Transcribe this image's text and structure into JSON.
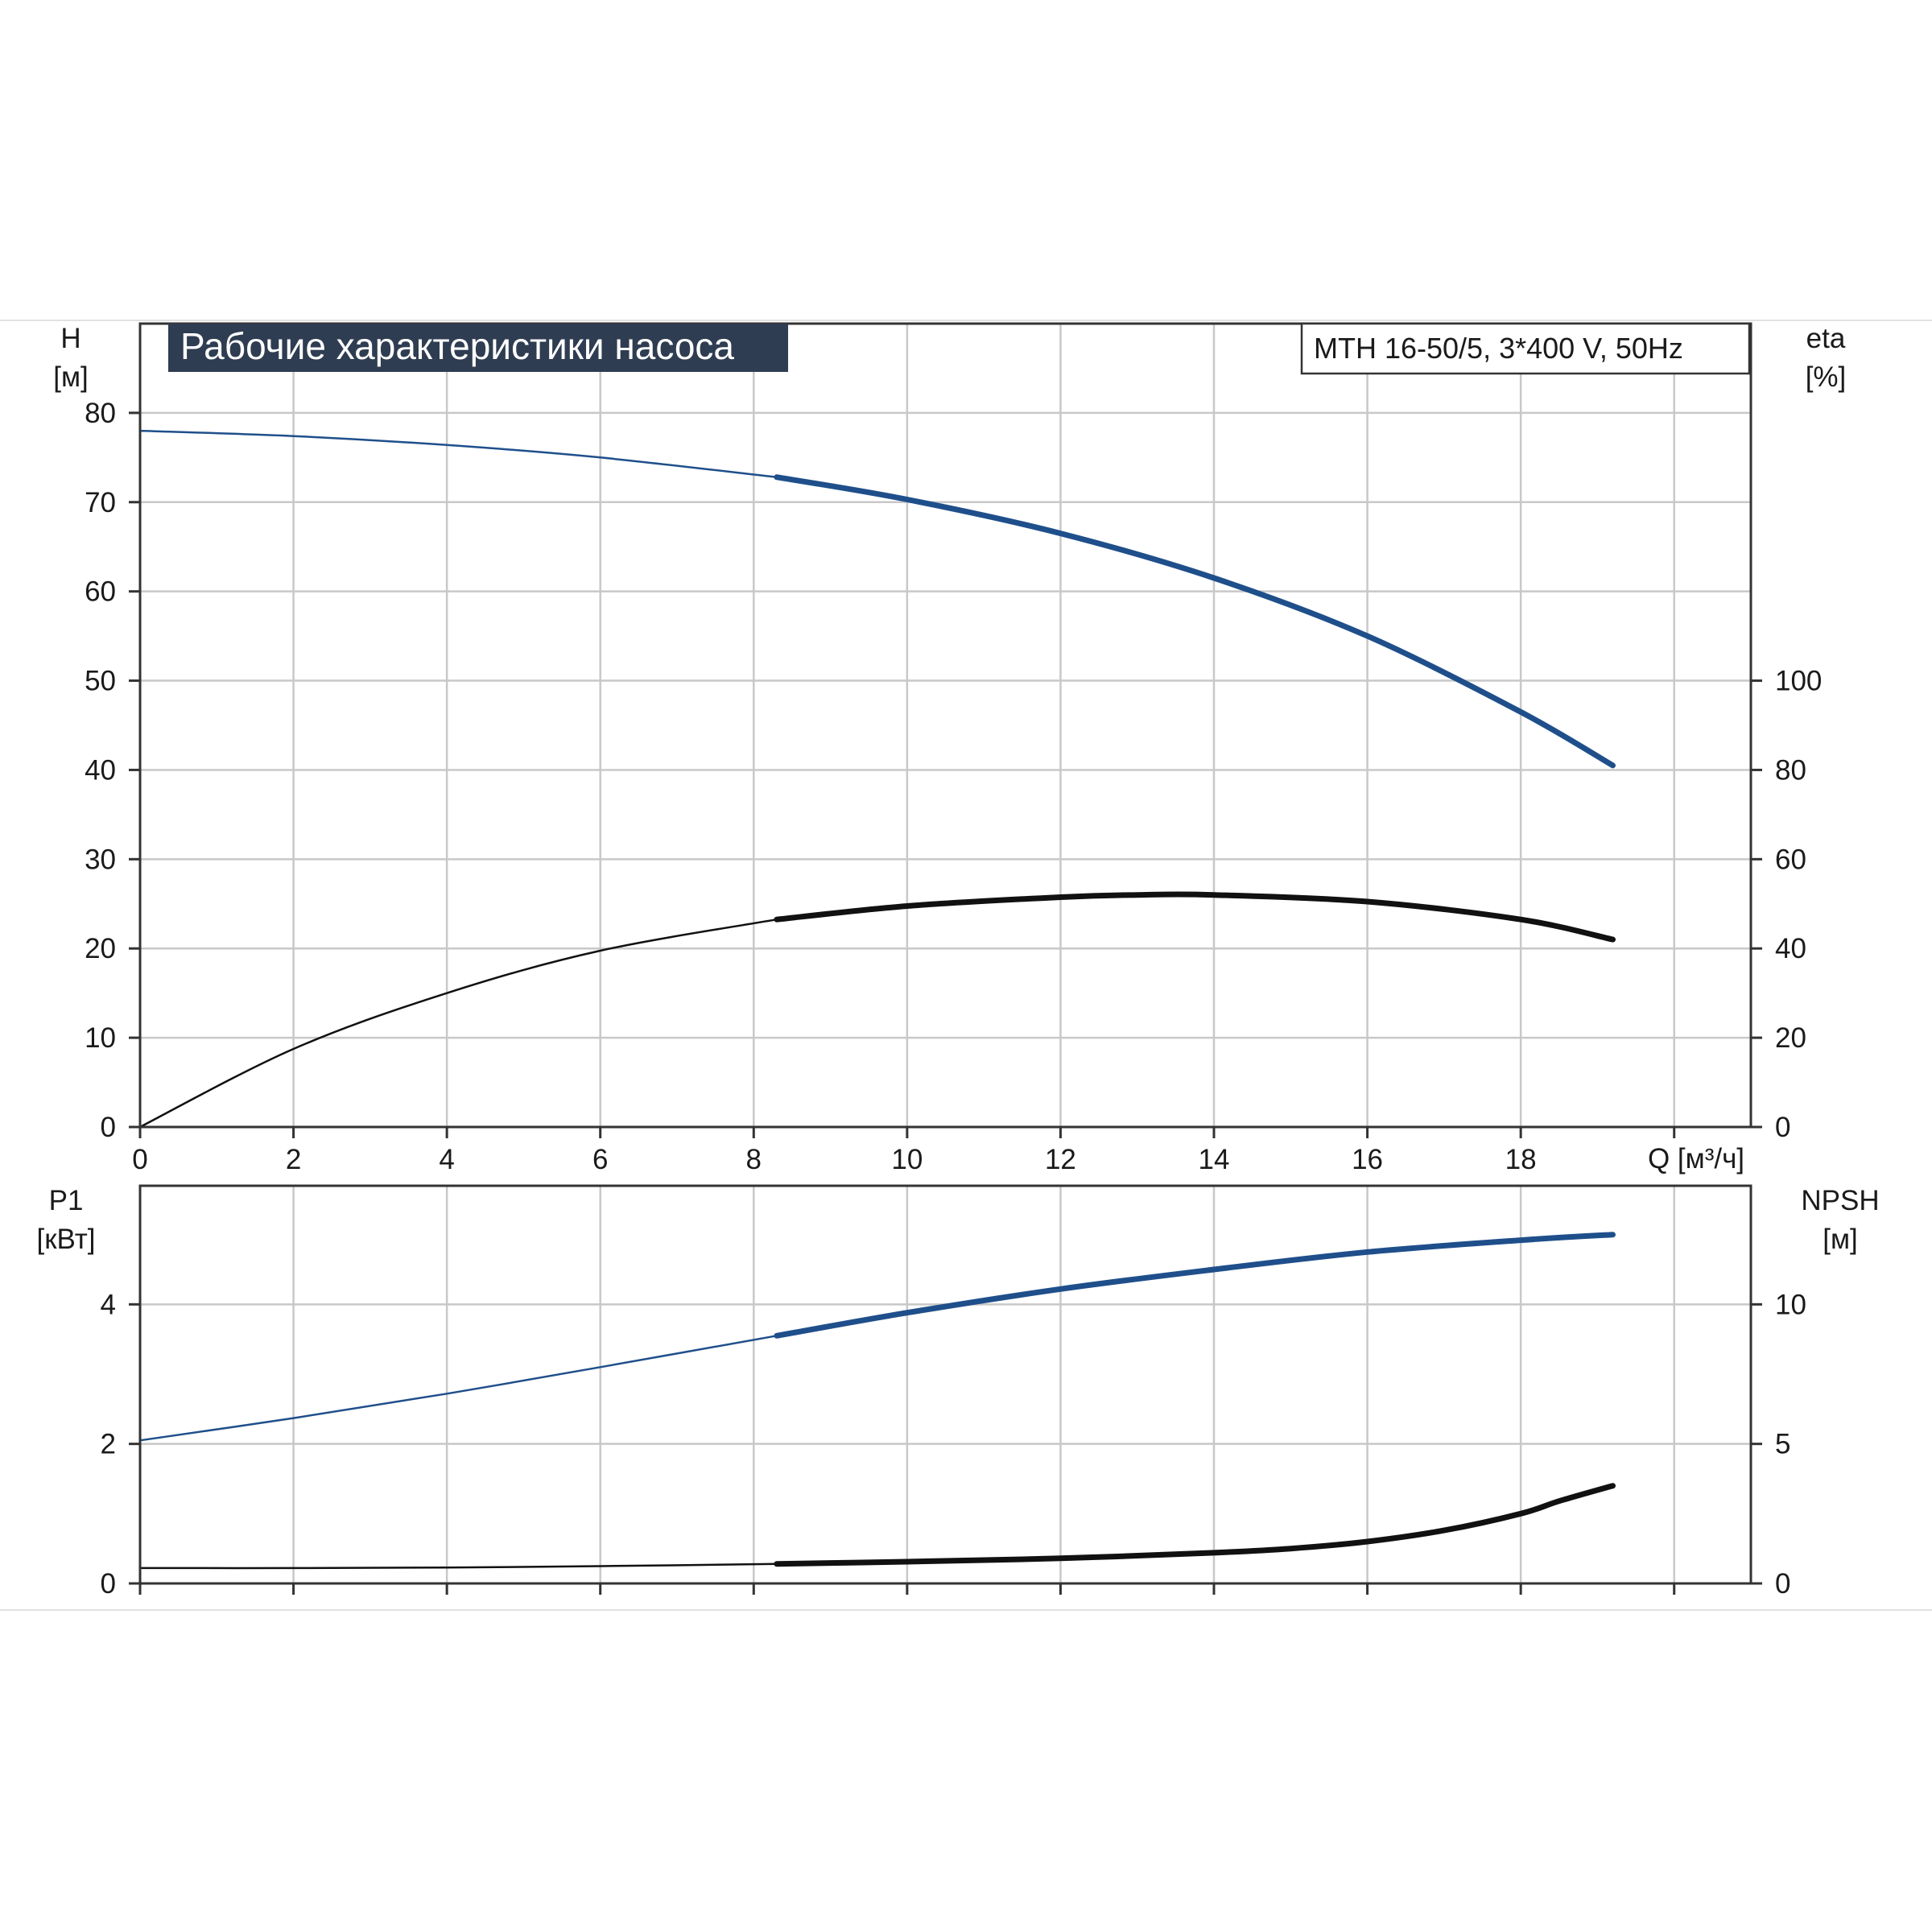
{
  "title": "Рабочие характеристики насоса",
  "model": "MTH 16-50/5, 3*400 V, 50Hz",
  "colors": {
    "head": "#1f4f8b",
    "efficiency": "#111111",
    "power": "#1f4f8b",
    "npsh": "#111111",
    "title_bg": "#2f3d52",
    "grid": "#c8c8c8"
  },
  "chart_data": [
    {
      "type": "line",
      "panel": "top",
      "xlabel": "Q [м³/ч]",
      "xlim": [
        0,
        21
      ],
      "xticks": [
        0,
        2,
        4,
        6,
        8,
        10,
        12,
        14,
        16,
        18
      ],
      "ylabel": "H\n[м]",
      "ylim": [
        0,
        90
      ],
      "yticks": [
        0,
        10,
        20,
        30,
        40,
        50,
        60,
        70,
        80
      ],
      "y2label": "eta\n[%]",
      "y2lim": [
        0,
        180
      ],
      "y2ticks": [
        0,
        20,
        40,
        60,
        80,
        100
      ],
      "grid": true,
      "series": [
        {
          "axis": "left",
          "color": "#1f4f8b",
          "x": [
            0,
            2,
            4,
            6,
            8.3,
            10,
            12,
            14,
            16,
            18,
            19.2
          ],
          "values": [
            78,
            77.4,
            76.4,
            75,
            72.8,
            70.3,
            66.5,
            61.5,
            55,
            46.5,
            40.5
          ]
        },
        {
          "axis": "right",
          "color": "#111111",
          "x": [
            0,
            2,
            4,
            6,
            8.3,
            10,
            12,
            13,
            14,
            16,
            18,
            19.2
          ],
          "values": [
            0,
            17.5,
            30,
            39.5,
            46.5,
            49.5,
            51.5,
            52,
            52,
            50.5,
            46.5,
            42
          ]
        }
      ]
    },
    {
      "type": "line",
      "panel": "bottom",
      "xlim": [
        0,
        21
      ],
      "ylabel": "P1\n[кВт]",
      "ylim": [
        0,
        5.7
      ],
      "yticks": [
        0,
        2,
        4
      ],
      "y2label": "NPSH\n[м]",
      "y2lim": [
        0,
        14.25
      ],
      "y2ticks": [
        0,
        5,
        10
      ],
      "grid": true,
      "series": [
        {
          "axis": "left",
          "color": "#1f4f8b",
          "x": [
            0,
            2,
            4,
            6,
            8.3,
            10,
            12,
            14,
            16,
            18,
            19.2
          ],
          "values": [
            2.05,
            2.37,
            2.72,
            3.1,
            3.55,
            3.88,
            4.22,
            4.5,
            4.75,
            4.92,
            5.0
          ]
        },
        {
          "axis": "right",
          "color": "#111111",
          "x": [
            0,
            2,
            4,
            6,
            8.3,
            10,
            12,
            14,
            15,
            16,
            17,
            18,
            18.5,
            19.2
          ],
          "values": [
            0.55,
            0.55,
            0.57,
            0.62,
            0.7,
            0.78,
            0.9,
            1.1,
            1.25,
            1.5,
            1.9,
            2.5,
            2.95,
            3.5
          ]
        }
      ]
    }
  ]
}
